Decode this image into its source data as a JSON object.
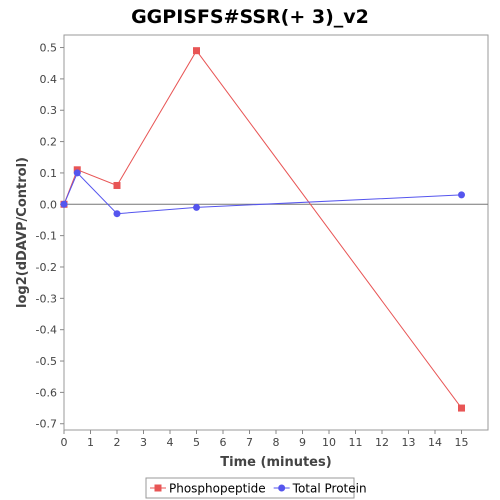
{
  "chart_data": {
    "type": "line",
    "title": "GGPISFS#SSR(+ 3)_v2",
    "xlabel": "Time (minutes)",
    "ylabel": "log2(dDAVP/Control)",
    "xlim": [
      0,
      16
    ],
    "ylim": [
      -0.72,
      0.54
    ],
    "xticks": [
      0,
      1,
      2,
      3,
      4,
      5,
      6,
      7,
      8,
      9,
      10,
      11,
      12,
      13,
      14,
      15
    ],
    "yticks": [
      0.5,
      0.4,
      0.3,
      0.2,
      0.1,
      0.0,
      -0.1,
      -0.2,
      -0.3,
      -0.4,
      -0.5,
      -0.6,
      -0.7
    ],
    "ytick_labels": [
      "0.5",
      "0.4",
      "0.3",
      "0.2",
      "0.1",
      "0.0",
      "-0.1",
      "-0.2",
      "-0.3",
      "-0.4",
      "-0.5",
      "-0.6",
      "-0.7"
    ],
    "grid": false,
    "legend_position": "bottom",
    "series": [
      {
        "name": "Phosphopeptide",
        "color": "#e85555",
        "marker": "square",
        "x": [
          0,
          0.5,
          2,
          5,
          15
        ],
        "y": [
          0.0,
          0.11,
          0.06,
          0.49,
          -0.65
        ]
      },
      {
        "name": "Total Protein",
        "color": "#5555ee",
        "marker": "circle",
        "x": [
          0,
          0.5,
          2,
          5,
          15
        ],
        "y": [
          0.0,
          0.1,
          -0.03,
          -0.01,
          0.03
        ]
      }
    ]
  }
}
